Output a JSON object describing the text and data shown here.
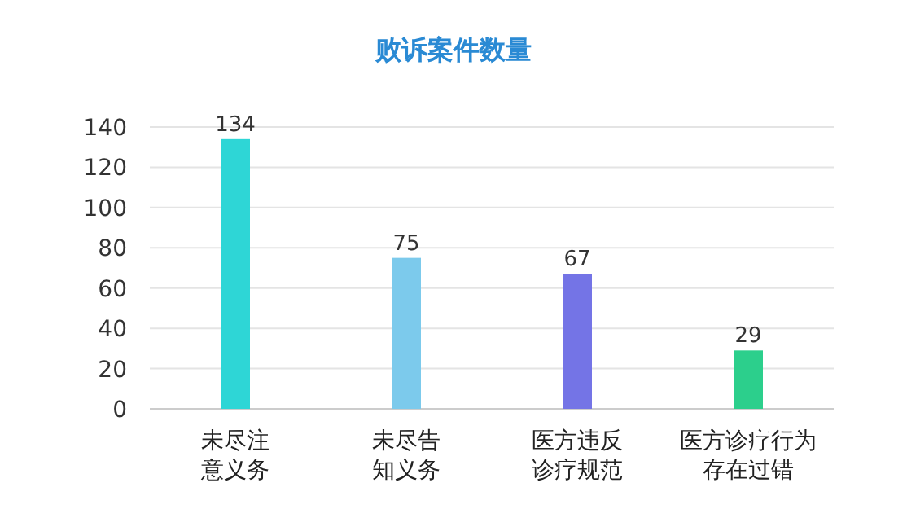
{
  "chart_data": {
    "type": "bar",
    "title": "败诉案件数量",
    "categories": [
      "未尽注意义务",
      "未尽告知义务",
      "医方违反诊疗规范",
      "医方诊疗行为存在过错"
    ],
    "values": [
      134,
      75,
      67,
      29
    ],
    "colors": [
      "#2ed6d6",
      "#7ccaec",
      "#7474e6",
      "#2ccf8c"
    ],
    "ylim": [
      0,
      140
    ],
    "yticks": [
      0,
      20,
      40,
      60,
      80,
      100,
      120,
      140
    ],
    "grid": "y",
    "data_labels": true
  }
}
